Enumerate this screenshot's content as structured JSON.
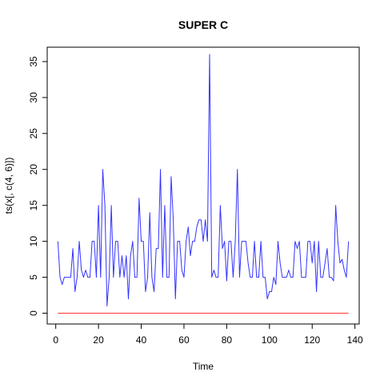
{
  "chart_data": {
    "type": "line",
    "title": "SUPER C",
    "xlabel": "Time",
    "ylabel": "ts(x[, c(4, 6)])",
    "xlim": [
      -4,
      142
    ],
    "ylim": [
      -1.5,
      37
    ],
    "x_ticks": [
      0,
      20,
      40,
      60,
      80,
      100,
      120,
      140
    ],
    "y_ticks": [
      0,
      5,
      10,
      15,
      20,
      25,
      30,
      35
    ],
    "x_start": 1,
    "series": [
      {
        "color": "#3333ff",
        "values": [
          10,
          5,
          4,
          5,
          5,
          5,
          5,
          9,
          3,
          5,
          10,
          6,
          5,
          6,
          5,
          5,
          10,
          10,
          5,
          15,
          5,
          20,
          15,
          1,
          5,
          15,
          5,
          10,
          10,
          5,
          8,
          5,
          8,
          2,
          8,
          10,
          5,
          5,
          16,
          10,
          10,
          3,
          5,
          14,
          5,
          3,
          9,
          9,
          20,
          5,
          15,
          5,
          5,
          19,
          13,
          2,
          10,
          10,
          6,
          5,
          10,
          12,
          8,
          10,
          10,
          12,
          13,
          13,
          10,
          13,
          10,
          36,
          5,
          6,
          5,
          5,
          15,
          9,
          10,
          4.5,
          10,
          10,
          5,
          10,
          20,
          5,
          10,
          10,
          10,
          7,
          5,
          5,
          10,
          5,
          5,
          10,
          5,
          5,
          2,
          3,
          3,
          5,
          4,
          10,
          7,
          5,
          5,
          5,
          6,
          5,
          5,
          10,
          9,
          10,
          5,
          5,
          5,
          10,
          10,
          7,
          10,
          3,
          10,
          5,
          5,
          7,
          9,
          5,
          5,
          4.5,
          15,
          10,
          7,
          7.5,
          6,
          5,
          10
        ]
      },
      {
        "color": "#ff3333",
        "values": [
          0,
          0,
          0,
          0,
          0,
          0,
          0,
          0,
          0,
          0,
          0,
          0,
          0,
          0,
          0,
          0,
          0,
          0,
          0,
          0,
          0,
          0,
          0,
          0,
          0,
          0,
          0,
          0,
          0,
          0,
          0,
          0,
          0,
          0,
          0,
          0,
          0,
          0,
          0,
          0,
          0,
          0,
          0,
          0,
          0,
          0,
          0,
          0,
          0,
          0,
          0,
          0,
          0,
          0,
          0,
          0,
          0,
          0,
          0,
          0,
          0,
          0,
          0,
          0,
          0,
          0,
          0,
          0,
          0,
          0,
          0,
          0,
          0,
          0,
          0,
          0,
          0,
          0,
          0,
          0,
          0,
          0,
          0,
          0,
          0,
          0,
          0,
          0,
          0,
          0,
          0,
          0,
          0,
          0,
          0,
          0,
          0,
          0,
          0,
          0,
          0,
          0,
          0,
          0,
          0,
          0,
          0,
          0,
          0,
          0,
          0,
          0,
          0,
          0,
          0,
          0,
          0,
          0,
          0,
          0,
          0,
          0,
          0,
          0,
          0,
          0,
          0,
          0,
          0,
          0,
          0,
          0,
          0,
          0,
          0,
          0,
          0
        ]
      }
    ]
  }
}
